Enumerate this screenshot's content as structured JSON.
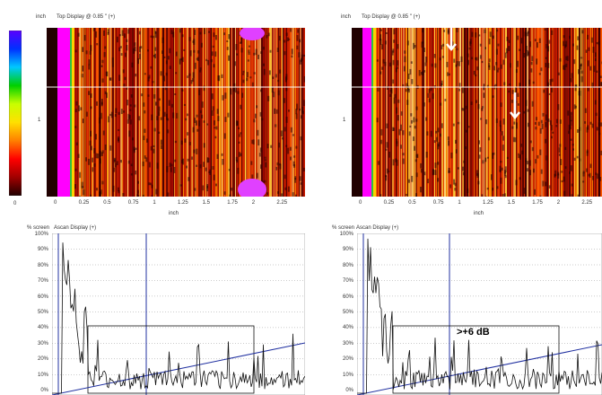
{
  "scale_bar": {
    "colors": [
      "#5a00ff",
      "#0030ff",
      "#00c8ff",
      "#00d000",
      "#c8ff00",
      "#ffe000",
      "#ff8000",
      "#ff0000",
      "#a00000",
      "#200000"
    ],
    "zero_label": "0"
  },
  "top_left": {
    "unit_label": "inch",
    "title": "Top Display @ 0.85 \" (+)",
    "y_tick": "1",
    "x_ticks": [
      "0",
      "0.25",
      "0.5",
      "0.75",
      "1",
      "1.25",
      "1.5",
      "1.75",
      "2",
      "2.25"
    ],
    "x_axis_label": "inch"
  },
  "top_right": {
    "unit_label": "inch",
    "title": "Top Display @ 0.85 \" (+)",
    "y_tick": "1",
    "x_ticks": [
      "0",
      "0.25",
      "0.5",
      "0.75",
      "1",
      "1.25",
      "1.5",
      "1.75",
      "2",
      "2.25"
    ],
    "x_axis_label": "inch",
    "arrows": [
      "down-arrow",
      "down-arrow"
    ]
  },
  "bottom_left": {
    "unit_label": "% screen",
    "title": "Ascan Display (+)",
    "y_ticks": [
      "100%",
      "90%",
      "80%",
      "70%",
      "60%",
      "50%",
      "40%",
      "30%",
      "20%",
      "10%",
      "0%"
    ]
  },
  "bottom_right": {
    "unit_label": "% screen",
    "title": "Ascan Display (+)",
    "y_ticks": [
      "100%",
      "90%",
      "80%",
      "70%",
      "60%",
      "50%",
      "40%",
      "30%",
      "20%",
      "10%",
      "0%"
    ],
    "annotation": ">+6 dB"
  },
  "colors": {
    "scan_background": "#c81e00",
    "magenta_band": "#ff00ff",
    "blue_line": "#2030a0"
  }
}
